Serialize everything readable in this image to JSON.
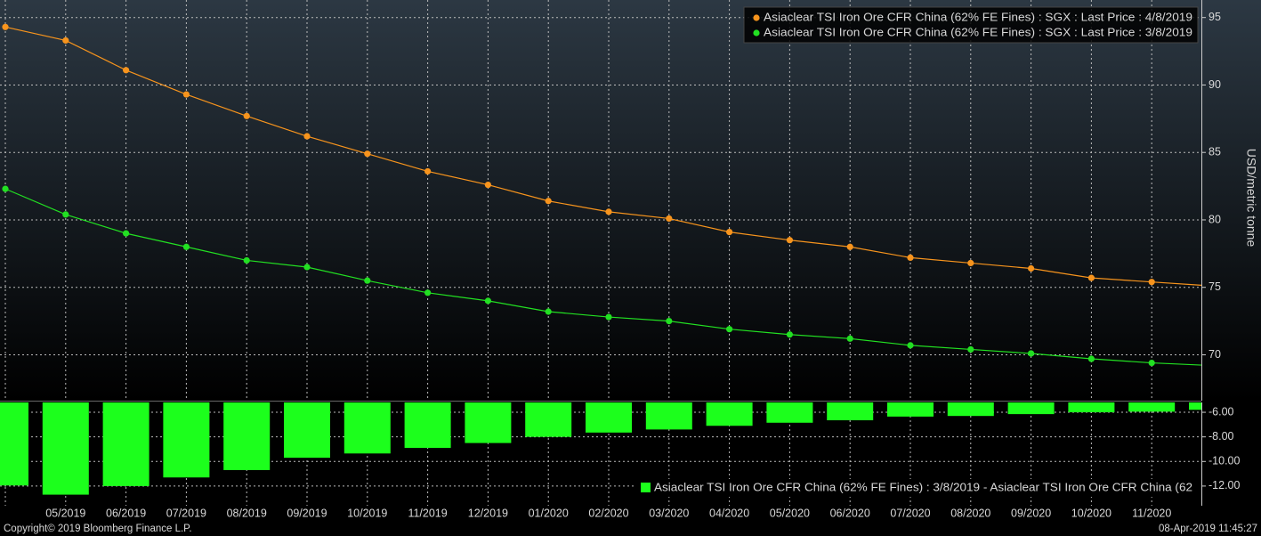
{
  "chart_data": [
    {
      "type": "line",
      "ylabel": "USD/metric tonne",
      "ylim": [
        66.6,
        96.3
      ],
      "yticks": [
        70,
        75,
        80,
        85,
        90,
        95
      ],
      "grid": true,
      "legend": "upper right",
      "series": [
        {
          "name": "Asiaclear TSI Iron Ore CFR China (62% FE Fines) : SGX : Last Price : 4/8/2019",
          "color": "#f7941d",
          "values": [
            94.3,
            93.3,
            91.1,
            89.3,
            87.7,
            86.2,
            84.9,
            83.6,
            82.6,
            81.4,
            80.6,
            80.1,
            79.1,
            78.5,
            78.0,
            77.2,
            76.8,
            76.4,
            75.7,
            75.4,
            75.1
          ]
        },
        {
          "name": "Asiaclear TSI Iron Ore CFR China (62% FE Fines) : SGX : Last Price : 3/8/2019",
          "color": "#22e022",
          "values": [
            82.3,
            80.4,
            79.0,
            78.0,
            77.0,
            76.5,
            75.5,
            74.6,
            74.0,
            73.2,
            72.8,
            72.5,
            71.9,
            71.5,
            71.2,
            70.7,
            70.4,
            70.1,
            69.7,
            69.4,
            69.2
          ]
        }
      ]
    },
    {
      "type": "bar",
      "categories": [
        null,
        "05/2019",
        "06/2019",
        "07/2019",
        "08/2019",
        "09/2019",
        "10/2019",
        "11/2019",
        "12/2019",
        "01/2020",
        "02/2020",
        "03/2020",
        "04/2020",
        "05/2020",
        "06/2020",
        "07/2020",
        "08/2020",
        "09/2020",
        "10/2020",
        "11/2020",
        null
      ],
      "ylim": [
        -13.6,
        -5.2
      ],
      "yticks": [
        {
          "value": -6,
          "label": "-6.00"
        },
        {
          "value": -8,
          "label": "-8.00"
        },
        {
          "value": -10,
          "label": "-10.00"
        },
        {
          "value": -12,
          "label": "-12.00"
        }
      ],
      "grid": true,
      "legend": "lower right",
      "series": [
        {
          "name": "Asiaclear TSI Iron Ore CFR China (62% FE Fines) : 3/8/2019 - Asiaclear TSI Iron Ore CFR China (62",
          "color": "#1cff1c",
          "values": [
            -11.95,
            -12.7,
            -12.0,
            -11.3,
            -10.7,
            -9.7,
            -9.35,
            -8.9,
            -8.5,
            -8.0,
            -7.65,
            -7.4,
            -7.1,
            -6.85,
            -6.65,
            -6.35,
            -6.3,
            -6.15,
            -6.0,
            -5.95,
            -5.8
          ]
        }
      ]
    }
  ],
  "footer": {
    "copyright": "Copyright© 2019 Bloomberg Finance L.P.",
    "timestamp": "08-Apr-2019 11:45:27"
  }
}
